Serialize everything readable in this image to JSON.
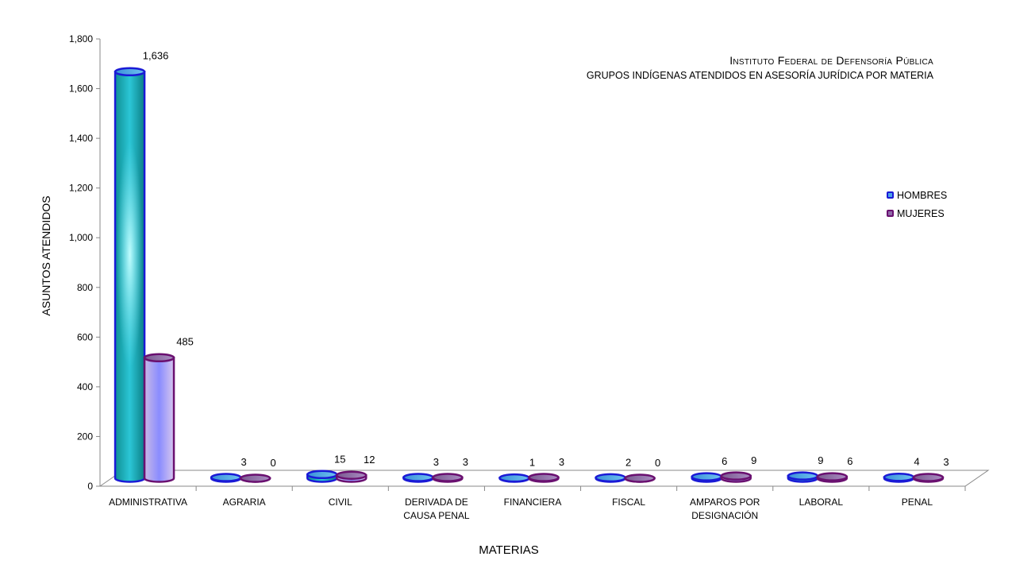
{
  "chart_data": {
    "type": "bar",
    "title": "Instituto Federal de Defensoría Pública",
    "subtitle": "GRUPOS INDÍGENAS ATENDIDOS EN ASESORÍA JURÍDICA POR MATERIA",
    "xlabel": "MATERIAS",
    "ylabel": "ASUNTOS ATENDIDOS",
    "ylim": [
      0,
      1800
    ],
    "yticks": [
      "0",
      "200",
      "400",
      "600",
      "800",
      "1,000",
      "1,200",
      "1,400",
      "1,600",
      "1,800"
    ],
    "categories": [
      [
        "ADMINISTRATIVA"
      ],
      [
        "AGRARIA"
      ],
      [
        "CIVIL"
      ],
      [
        "DERIVADA DE",
        "CAUSA PENAL"
      ],
      [
        "FINANCIERA"
      ],
      [
        "FISCAL"
      ],
      [
        "AMPAROS POR",
        "DESIGNACIÓN"
      ],
      [
        "LABORAL"
      ],
      [
        "PENAL"
      ]
    ],
    "series": [
      {
        "name": "HOMBRES",
        "values": [
          1636,
          3,
          15,
          3,
          1,
          2,
          6,
          9,
          4
        ],
        "labels": [
          "1,636",
          "3",
          "15",
          "3",
          "1",
          "2",
          "6",
          "9",
          "4"
        ],
        "color": "#1a1ad6"
      },
      {
        "name": "MUJERES",
        "values": [
          485,
          0,
          12,
          3,
          3,
          0,
          9,
          6,
          3
        ],
        "labels": [
          "485",
          "0",
          "12",
          "3",
          "3",
          "0",
          "9",
          "6",
          "3"
        ],
        "color": "#6a1070"
      }
    ],
    "legend_position": "right",
    "grid": false
  }
}
